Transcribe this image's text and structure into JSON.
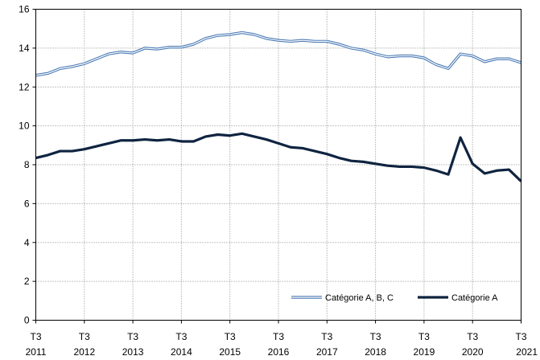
{
  "chart_data": {
    "type": "line",
    "title": "",
    "xlabel": "",
    "ylabel": "",
    "ylim": [
      0,
      16
    ],
    "y_ticks": [
      0,
      2,
      4,
      6,
      8,
      10,
      12,
      14,
      16
    ],
    "grid": "dotted, both axes",
    "x_tick_labels": [
      {
        "q": "T3",
        "year": "2011"
      },
      {
        "q": "T3",
        "year": "2012"
      },
      {
        "q": "T3",
        "year": "2013"
      },
      {
        "q": "T3",
        "year": "2014"
      },
      {
        "q": "T3",
        "year": "2015"
      },
      {
        "q": "T3",
        "year": "2016"
      },
      {
        "q": "T3",
        "year": "2017"
      },
      {
        "q": "T3",
        "year": "2018"
      },
      {
        "q": "T3",
        "year": "2019"
      },
      {
        "q": "T3",
        "year": "2020"
      },
      {
        "q": "T3",
        "year": "2021"
      }
    ],
    "x": [
      "2011 T3",
      "2011 T4",
      "2012 T1",
      "2012 T2",
      "2012 T3",
      "2012 T4",
      "2013 T1",
      "2013 T2",
      "2013 T3",
      "2013 T4",
      "2014 T1",
      "2014 T2",
      "2014 T3",
      "2014 T4",
      "2015 T1",
      "2015 T2",
      "2015 T3",
      "2015 T4",
      "2016 T1",
      "2016 T2",
      "2016 T3",
      "2016 T4",
      "2017 T1",
      "2017 T2",
      "2017 T3",
      "2017 T4",
      "2018 T1",
      "2018 T2",
      "2018 T3",
      "2018 T4",
      "2019 T1",
      "2019 T2",
      "2019 T3",
      "2019 T4",
      "2020 T1",
      "2020 T2",
      "2020 T3",
      "2020 T4",
      "2021 T1",
      "2021 T2",
      "2021 T3"
    ],
    "legend_position": "bottom-right",
    "series": [
      {
        "name": "Catégorie A, B, C",
        "color": "#4a7ab5",
        "style": "double-line",
        "values": [
          12.6,
          12.7,
          12.95,
          13.05,
          13.2,
          13.45,
          13.7,
          13.8,
          13.75,
          14.0,
          13.95,
          14.05,
          14.05,
          14.2,
          14.5,
          14.65,
          14.7,
          14.8,
          14.7,
          14.5,
          14.4,
          14.35,
          14.4,
          14.35,
          14.35,
          14.2,
          14.0,
          13.9,
          13.7,
          13.55,
          13.6,
          13.6,
          13.5,
          13.15,
          12.95,
          13.7,
          13.6,
          13.3,
          13.45,
          13.45,
          13.25
        ]
      },
      {
        "name": "Catégorie A",
        "color": "#0f2440",
        "style": "solid-thick",
        "values": [
          8.35,
          8.5,
          8.7,
          8.7,
          8.8,
          8.95,
          9.1,
          9.25,
          9.25,
          9.3,
          9.25,
          9.3,
          9.2,
          9.2,
          9.45,
          9.55,
          9.5,
          9.6,
          9.45,
          9.3,
          9.1,
          8.9,
          8.85,
          8.7,
          8.55,
          8.35,
          8.2,
          8.15,
          8.05,
          7.95,
          7.9,
          7.9,
          7.85,
          7.7,
          7.5,
          9.4,
          8.05,
          7.55,
          7.7,
          7.75,
          7.15
        ]
      }
    ]
  }
}
